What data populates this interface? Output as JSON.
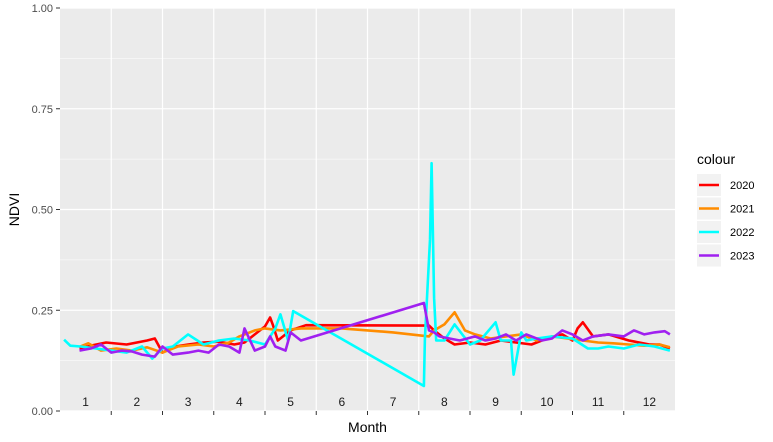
{
  "chart_data": {
    "type": "line",
    "title": "",
    "xlabel": "Month",
    "ylabel": "NDVI",
    "ylim": [
      0,
      1
    ],
    "yticks": [
      0.0,
      0.25,
      0.5,
      0.75,
      1
    ],
    "ytick_labels": [
      "0.00",
      "0.25",
      "0.50",
      "0.75",
      "1.00"
    ],
    "xlim": [
      0.5,
      12.5
    ],
    "month_labels": [
      "1",
      "2",
      "3",
      "4",
      "5",
      "6",
      "7",
      "8",
      "9",
      "10",
      "11",
      "12"
    ],
    "grid": true,
    "panel_background": "#ebebeb",
    "legend_title": "colour",
    "legend_position": "right",
    "series": [
      {
        "name": "2020",
        "color": "#ff0000",
        "x": [
          0.88,
          1.1,
          1.4,
          1.8,
          2.2,
          2.35,
          2.5,
          2.75,
          3.0,
          3.3,
          3.6,
          3.9,
          4.1,
          4.3,
          4.5,
          4.6,
          4.65,
          4.75,
          5.0,
          5.3,
          7.7,
          7.8,
          8.0,
          8.2,
          8.5,
          8.8,
          9.1,
          9.4,
          9.7,
          10.0,
          10.3,
          10.5,
          10.6,
          10.7,
          10.9,
          11.2,
          11.6,
          12.0,
          12.2,
          12.4
        ],
        "y": [
          0.155,
          0.162,
          0.17,
          0.165,
          0.175,
          0.18,
          0.145,
          0.16,
          0.165,
          0.17,
          0.172,
          0.165,
          0.17,
          0.19,
          0.21,
          0.232,
          0.215,
          0.175,
          0.2,
          0.213,
          0.212,
          0.2,
          0.18,
          0.165,
          0.17,
          0.165,
          0.175,
          0.17,
          0.165,
          0.18,
          0.19,
          0.175,
          0.205,
          0.22,
          0.185,
          0.19,
          0.175,
          0.165,
          0.165,
          0.155
        ]
      },
      {
        "name": "2021",
        "color": "#ff8c00",
        "x": [
          0.9,
          1.05,
          1.3,
          1.6,
          1.9,
          2.2,
          2.5,
          2.8,
          3.2,
          3.5,
          3.8,
          4.0,
          4.3,
          4.5,
          4.8,
          5.2,
          6.0,
          7.0,
          7.7,
          7.8,
          8.0,
          8.2,
          8.4,
          8.6,
          8.9,
          9.2,
          9.5,
          9.8,
          10.1,
          10.4,
          10.7,
          11.0,
          11.3,
          11.6,
          11.9,
          12.2,
          12.4
        ],
        "y": [
          0.16,
          0.168,
          0.15,
          0.155,
          0.15,
          0.158,
          0.145,
          0.16,
          0.165,
          0.16,
          0.17,
          0.185,
          0.2,
          0.205,
          0.2,
          0.205,
          0.205,
          0.195,
          0.185,
          0.2,
          0.215,
          0.245,
          0.2,
          0.19,
          0.18,
          0.185,
          0.19,
          0.175,
          0.185,
          0.18,
          0.175,
          0.17,
          0.168,
          0.165,
          0.162,
          0.165,
          0.158
        ]
      },
      {
        "name": "2022",
        "color": "#00ffff",
        "x": [
          0.58,
          0.7,
          0.9,
          1.2,
          1.5,
          1.8,
          2.1,
          2.3,
          2.5,
          2.7,
          3.0,
          3.3,
          3.6,
          3.9,
          4.2,
          4.5,
          4.7,
          4.8,
          4.95,
          5.05,
          7.6,
          7.62,
          7.72,
          7.75,
          7.8,
          7.84,
          8.0,
          8.2,
          8.5,
          8.7,
          9.0,
          9.1,
          9.3,
          9.35,
          9.5,
          9.6,
          9.8,
          10.1,
          10.5,
          10.8,
          11.0,
          11.2,
          11.5,
          11.8,
          12.1,
          12.4
        ],
        "y": [
          0.177,
          0.162,
          0.16,
          0.155,
          0.15,
          0.145,
          0.16,
          0.13,
          0.155,
          0.16,
          0.19,
          0.165,
          0.175,
          0.18,
          0.175,
          0.165,
          0.205,
          0.24,
          0.175,
          0.248,
          0.062,
          0.18,
          0.425,
          0.615,
          0.28,
          0.175,
          0.175,
          0.215,
          0.165,
          0.175,
          0.22,
          0.175,
          0.175,
          0.09,
          0.195,
          0.175,
          0.18,
          0.185,
          0.18,
          0.155,
          0.155,
          0.16,
          0.155,
          0.165,
          0.16,
          0.15
        ]
      },
      {
        "name": "2023",
        "color": "#a020f0",
        "x": [
          0.88,
          1.1,
          1.3,
          1.5,
          1.7,
          1.9,
          2.1,
          2.35,
          2.5,
          2.7,
          3.0,
          3.2,
          3.4,
          3.6,
          3.8,
          4.0,
          4.1,
          4.3,
          4.5,
          4.6,
          4.7,
          4.9,
          5.0,
          5.2,
          7.6,
          7.7,
          7.8,
          7.9,
          8.1,
          8.3,
          8.6,
          8.8,
          9.0,
          9.2,
          9.4,
          9.6,
          9.9,
          10.1,
          10.3,
          10.5,
          10.7,
          10.9,
          11.2,
          11.5,
          11.7,
          11.9,
          12.1,
          12.3,
          12.4
        ],
        "y": [
          0.15,
          0.155,
          0.165,
          0.145,
          0.15,
          0.148,
          0.14,
          0.135,
          0.16,
          0.14,
          0.145,
          0.15,
          0.145,
          0.165,
          0.16,
          0.145,
          0.205,
          0.15,
          0.16,
          0.185,
          0.16,
          0.15,
          0.195,
          0.175,
          0.268,
          0.2,
          0.195,
          0.185,
          0.18,
          0.175,
          0.185,
          0.175,
          0.18,
          0.19,
          0.175,
          0.19,
          0.175,
          0.18,
          0.2,
          0.19,
          0.175,
          0.185,
          0.19,
          0.185,
          0.2,
          0.19,
          0.195,
          0.198,
          0.19
        ]
      }
    ]
  }
}
